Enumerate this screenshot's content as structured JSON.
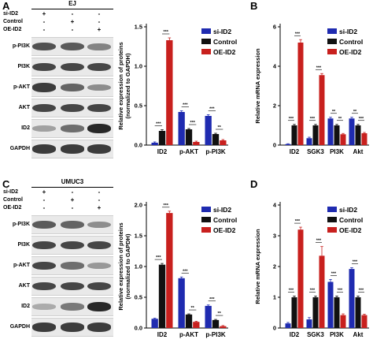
{
  "panels": {
    "A": {
      "letter": "A",
      "cell_line": "EJ",
      "conditions": [
        {
          "label": "si-ID2",
          "signs": [
            "+",
            "-",
            "-"
          ]
        },
        {
          "label": "Control",
          "signs": [
            "-",
            "+",
            "-"
          ]
        },
        {
          "label": "OE-ID2",
          "signs": [
            "-",
            "-",
            "+"
          ]
        }
      ],
      "blot_rows": [
        {
          "label": "p-PI3K",
          "intensity": [
            0.75,
            0.7,
            0.5
          ]
        },
        {
          "label": "PI3K",
          "intensity": [
            0.8,
            0.8,
            0.8
          ]
        },
        {
          "label": "p-AKT",
          "intensity": [
            0.85,
            0.65,
            0.45
          ]
        },
        {
          "label": "AKT",
          "intensity": [
            0.8,
            0.8,
            0.8
          ]
        },
        {
          "label": "ID2",
          "intensity": [
            0.35,
            0.6,
            0.95
          ]
        },
        {
          "label": "GAPDH",
          "intensity": [
            0.85,
            0.85,
            0.85
          ]
        }
      ]
    },
    "C": {
      "letter": "C",
      "cell_line": "UMUC3",
      "conditions": [
        {
          "label": "si-ID2",
          "signs": [
            "+",
            "-",
            "-"
          ]
        },
        {
          "label": "Control",
          "signs": [
            "-",
            "+",
            "-"
          ]
        },
        {
          "label": "OE-ID2",
          "signs": [
            "-",
            "-",
            "+"
          ]
        }
      ],
      "blot_rows": [
        {
          "label": "p-PI3K",
          "intensity": [
            0.7,
            0.65,
            0.45
          ]
        },
        {
          "label": "PI3K",
          "intensity": [
            0.8,
            0.8,
            0.8
          ]
        },
        {
          "label": "p-AKT",
          "intensity": [
            0.8,
            0.6,
            0.4
          ]
        },
        {
          "label": "AKT",
          "intensity": [
            0.8,
            0.8,
            0.8
          ]
        },
        {
          "label": "ID2",
          "intensity": [
            0.3,
            0.55,
            0.95
          ]
        },
        {
          "label": "GAPDH",
          "intensity": [
            0.85,
            0.85,
            0.85
          ]
        }
      ]
    },
    "B": {
      "letter": "B"
    },
    "D": {
      "letter": "D"
    }
  },
  "colors": {
    "si-ID2": "#1f2bb0",
    "Control": "#111111",
    "OE-ID2": "#c8201e"
  },
  "chart_data": [
    {
      "id": "A-chart",
      "type": "bar",
      "ylabel": "Relative expression of proteins\n(normalized to GAPDH)",
      "categories": [
        "ID2",
        "p-AKT",
        "p-PI3K"
      ],
      "ylim": [
        0,
        1.5
      ],
      "yticks": [
        "0.0",
        "0.5",
        "1.0",
        "1.5"
      ],
      "series": [
        {
          "name": "si-ID2",
          "color": "#1f2bb0",
          "values": [
            0.03,
            0.42,
            0.37
          ],
          "errors": [
            0.01,
            0.015,
            0.015
          ]
        },
        {
          "name": "Control",
          "color": "#111111",
          "values": [
            0.18,
            0.2,
            0.14
          ],
          "errors": [
            0.015,
            0.01,
            0.01
          ]
        },
        {
          "name": "OE-ID2",
          "color": "#c8201e",
          "values": [
            1.33,
            0.04,
            0.06
          ],
          "errors": [
            0.03,
            0.01,
            0.01
          ]
        }
      ],
      "annotations": [
        {
          "cat": 0,
          "from": 0,
          "to": 1,
          "text": "***"
        },
        {
          "cat": 0,
          "from": 1,
          "to": 2,
          "text": "***"
        },
        {
          "cat": 1,
          "from": 0,
          "to": 1,
          "text": "***"
        },
        {
          "cat": 1,
          "from": 1,
          "to": 2,
          "text": "***"
        },
        {
          "cat": 2,
          "from": 0,
          "to": 1,
          "text": "***"
        },
        {
          "cat": 2,
          "from": 1,
          "to": 2,
          "text": "**"
        }
      ]
    },
    {
      "id": "B-chart",
      "type": "bar",
      "ylabel": "Relative mRNA expression",
      "categories": [
        "ID2",
        "SGK3",
        "PI3K",
        "Akt"
      ],
      "ylim": [
        0,
        6
      ],
      "yticks": [
        "0",
        "2",
        "4",
        "6"
      ],
      "series": [
        {
          "name": "si-ID2",
          "color": "#1f2bb0",
          "values": [
            0.05,
            0.35,
            1.35,
            1.35
          ],
          "errors": [
            0.02,
            0.05,
            0.06,
            0.06
          ]
        },
        {
          "name": "Control",
          "color": "#111111",
          "values": [
            1.0,
            1.0,
            1.0,
            1.0
          ],
          "errors": [
            0.05,
            0.05,
            0.05,
            0.05
          ]
        },
        {
          "name": "OE-ID2",
          "color": "#c8201e",
          "values": [
            5.2,
            3.55,
            0.55,
            0.6
          ],
          "errors": [
            0.15,
            0.08,
            0.04,
            0.04
          ]
        }
      ],
      "annotations": [
        {
          "cat": 0,
          "from": 0,
          "to": 1,
          "text": "***"
        },
        {
          "cat": 0,
          "from": 1,
          "to": 2,
          "text": "***"
        },
        {
          "cat": 1,
          "from": 0,
          "to": 1,
          "text": "***"
        },
        {
          "cat": 1,
          "from": 1,
          "to": 2,
          "text": "***"
        },
        {
          "cat": 2,
          "from": 0,
          "to": 1,
          "text": "**"
        },
        {
          "cat": 2,
          "from": 1,
          "to": 2,
          "text": "**"
        },
        {
          "cat": 3,
          "from": 0,
          "to": 1,
          "text": "**"
        },
        {
          "cat": 3,
          "from": 1,
          "to": 2,
          "text": "***"
        }
      ]
    },
    {
      "id": "C-chart",
      "type": "bar",
      "ylabel": "Relative expression of proteins\n(normalized to GAPDH)",
      "categories": [
        "ID2",
        "p-AKT",
        "p-PI3K"
      ],
      "ylim": [
        0,
        2.0
      ],
      "yticks": [
        "0.0",
        "0.5",
        "1.0",
        "1.5",
        "2.0"
      ],
      "series": [
        {
          "name": "si-ID2",
          "color": "#1f2bb0",
          "values": [
            0.15,
            0.81,
            0.36
          ],
          "errors": [
            0.01,
            0.02,
            0.015
          ]
        },
        {
          "name": "Control",
          "color": "#111111",
          "values": [
            1.03,
            0.22,
            0.13
          ],
          "errors": [
            0.02,
            0.01,
            0.01
          ]
        },
        {
          "name": "OE-ID2",
          "color": "#c8201e",
          "values": [
            1.87,
            0.1,
            0.03
          ],
          "errors": [
            0.03,
            0.01,
            0.01
          ]
        }
      ],
      "annotations": [
        {
          "cat": 0,
          "from": 0,
          "to": 1,
          "text": "***"
        },
        {
          "cat": 0,
          "from": 1,
          "to": 2,
          "text": "***"
        },
        {
          "cat": 1,
          "from": 0,
          "to": 1,
          "text": "***"
        },
        {
          "cat": 1,
          "from": 1,
          "to": 2,
          "text": "**"
        },
        {
          "cat": 2,
          "from": 0,
          "to": 1,
          "text": "***"
        },
        {
          "cat": 2,
          "from": 1,
          "to": 2,
          "text": "**"
        }
      ]
    },
    {
      "id": "D-chart",
      "type": "bar",
      "ylabel": "Relative mRNA expression",
      "categories": [
        "ID2",
        "SGK3",
        "PI3K",
        "Akt"
      ],
      "ylim": [
        0,
        4
      ],
      "yticks": [
        "0",
        "1",
        "2",
        "3",
        "4"
      ],
      "series": [
        {
          "name": "si-ID2",
          "color": "#1f2bb0",
          "values": [
            0.15,
            0.28,
            1.5,
            1.92
          ],
          "errors": [
            0.03,
            0.06,
            0.08,
            0.04
          ]
        },
        {
          "name": "Control",
          "color": "#111111",
          "values": [
            1.0,
            1.0,
            1.0,
            1.0
          ],
          "errors": [
            0.04,
            0.04,
            0.04,
            0.04
          ]
        },
        {
          "name": "OE-ID2",
          "color": "#c8201e",
          "values": [
            3.2,
            2.35,
            0.42,
            0.42
          ],
          "errors": [
            0.08,
            0.3,
            0.04,
            0.03
          ]
        }
      ],
      "annotations": [
        {
          "cat": 0,
          "from": 0,
          "to": 1,
          "text": "***"
        },
        {
          "cat": 0,
          "from": 1,
          "to": 2,
          "text": "***"
        },
        {
          "cat": 1,
          "from": 0,
          "to": 1,
          "text": "***"
        },
        {
          "cat": 1,
          "from": 1,
          "to": 2,
          "text": "***"
        },
        {
          "cat": 2,
          "from": 0,
          "to": 1,
          "text": "***"
        },
        {
          "cat": 2,
          "from": 1,
          "to": 2,
          "text": "***"
        },
        {
          "cat": 3,
          "from": 0,
          "to": 1,
          "text": "***"
        },
        {
          "cat": 3,
          "from": 1,
          "to": 2,
          "text": "***"
        }
      ]
    }
  ]
}
